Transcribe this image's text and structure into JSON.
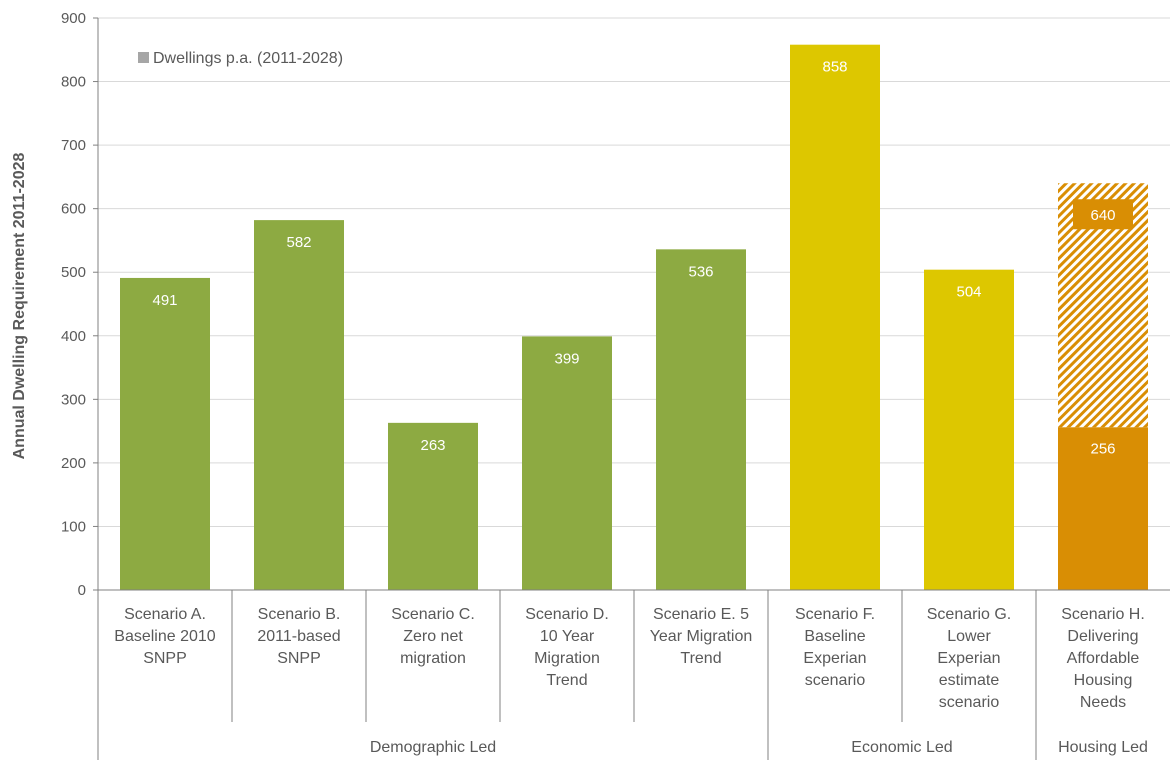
{
  "chart_data": {
    "type": "bar",
    "ylabel": "Annual Dwelling Requirement 2011-2028",
    "ylim": [
      0,
      900
    ],
    "yticks": [
      0,
      100,
      200,
      300,
      400,
      500,
      600,
      700,
      800,
      900
    ],
    "grid": true,
    "legend": {
      "position": "top-left",
      "entries": [
        "Dwellings p.a. (2011-2028)"
      ]
    },
    "categories": [
      [
        "Scenario A.",
        "Baseline 2010",
        "SNPP"
      ],
      [
        "Scenario B.",
        "2011-based",
        "SNPP"
      ],
      [
        "Scenario C.",
        "Zero net",
        "migration"
      ],
      [
        "Scenario D.",
        "10 Year",
        "Migration",
        "Trend"
      ],
      [
        "Scenario E. 5",
        "Year Migration",
        "Trend"
      ],
      [
        "Scenario F.",
        "Baseline",
        "Experian",
        "scenario"
      ],
      [
        "Scenario G.",
        "Lower",
        "Experian",
        "estimate",
        "scenario"
      ],
      [
        "Scenario H.",
        "Delivering",
        "Affordable",
        "Housing",
        "Needs"
      ]
    ],
    "series": [
      {
        "values": [
          491,
          582,
          263,
          399,
          536,
          858,
          504,
          640
        ],
        "lower_segment": [
          null,
          null,
          null,
          null,
          null,
          null,
          null,
          256
        ],
        "labels": [
          "491",
          "582",
          "263",
          "399",
          "536",
          "858",
          "504",
          "640"
        ],
        "lower_label": "256"
      }
    ],
    "groups": [
      {
        "label": "Demographic Led",
        "start": 0,
        "end": 4
      },
      {
        "label": "Economic Led",
        "start": 5,
        "end": 6
      },
      {
        "label": "Housing Led",
        "start": 7,
        "end": 7
      }
    ],
    "colors": {
      "demographic": "#8DAA42",
      "economic": "#DDC700",
      "housing": "#D98E04",
      "hatch_background": "#ffffff",
      "legend_swatch": "#A6A6A6",
      "grid": "#D9D9D9",
      "axis": "#808080"
    },
    "bar_group_index": [
      0,
      0,
      0,
      0,
      0,
      1,
      1,
      2
    ]
  }
}
